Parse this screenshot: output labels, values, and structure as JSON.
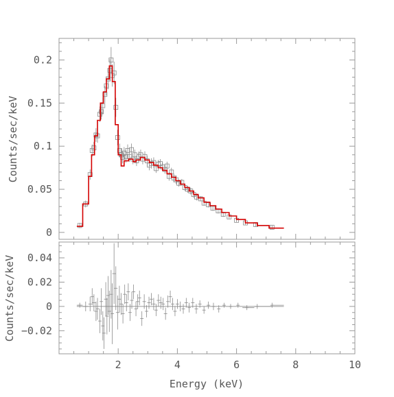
{
  "chart_data": [
    {
      "type": "line",
      "panel": "spectrum",
      "xlabel": "",
      "ylabel": "Counts/sec/keV",
      "xlim": [
        0,
        10
      ],
      "ylim": [
        -0.008,
        0.225
      ],
      "yticks": [
        {
          "v": 0,
          "label": "0"
        },
        {
          "v": 0.05,
          "label": "0.05"
        },
        {
          "v": 0.1,
          "label": "0.1"
        },
        {
          "v": 0.15,
          "label": "0.15"
        },
        {
          "v": 0.2,
          "label": "0.2"
        }
      ],
      "model_color": "#d40000",
      "data_color": "#888888",
      "model_step": [
        [
          0.6,
          0.007
        ],
        [
          0.8,
          0.007
        ],
        [
          0.8,
          0.033
        ],
        [
          1.0,
          0.033
        ],
        [
          1.0,
          0.065
        ],
        [
          1.1,
          0.065
        ],
        [
          1.1,
          0.09
        ],
        [
          1.2,
          0.09
        ],
        [
          1.2,
          0.112
        ],
        [
          1.3,
          0.112
        ],
        [
          1.3,
          0.13
        ],
        [
          1.4,
          0.13
        ],
        [
          1.4,
          0.15
        ],
        [
          1.5,
          0.15
        ],
        [
          1.5,
          0.163
        ],
        [
          1.6,
          0.163
        ],
        [
          1.6,
          0.178
        ],
        [
          1.7,
          0.178
        ],
        [
          1.7,
          0.193
        ],
        [
          1.8,
          0.193
        ],
        [
          1.8,
          0.175
        ],
        [
          1.9,
          0.175
        ],
        [
          1.9,
          0.125
        ],
        [
          2.0,
          0.125
        ],
        [
          2.0,
          0.09
        ],
        [
          2.1,
          0.09
        ],
        [
          2.1,
          0.077
        ],
        [
          2.2,
          0.077
        ],
        [
          2.2,
          0.083
        ],
        [
          2.35,
          0.083
        ],
        [
          2.35,
          0.085
        ],
        [
          2.5,
          0.085
        ],
        [
          2.5,
          0.082
        ],
        [
          2.6,
          0.082
        ],
        [
          2.6,
          0.084
        ],
        [
          2.75,
          0.084
        ],
        [
          2.75,
          0.087
        ],
        [
          2.9,
          0.087
        ],
        [
          2.9,
          0.084
        ],
        [
          3.05,
          0.084
        ],
        [
          3.05,
          0.081
        ],
        [
          3.2,
          0.081
        ],
        [
          3.2,
          0.078
        ],
        [
          3.35,
          0.078
        ],
        [
          3.35,
          0.075
        ],
        [
          3.5,
          0.075
        ],
        [
          3.5,
          0.072
        ],
        [
          3.65,
          0.072
        ],
        [
          3.65,
          0.068
        ],
        [
          3.8,
          0.068
        ],
        [
          3.8,
          0.064
        ],
        [
          3.95,
          0.064
        ],
        [
          3.95,
          0.06
        ],
        [
          4.1,
          0.06
        ],
        [
          4.1,
          0.056
        ],
        [
          4.25,
          0.056
        ],
        [
          4.25,
          0.052
        ],
        [
          4.4,
          0.052
        ],
        [
          4.4,
          0.048
        ],
        [
          4.55,
          0.048
        ],
        [
          4.55,
          0.044
        ],
        [
          4.7,
          0.044
        ],
        [
          4.7,
          0.04
        ],
        [
          4.9,
          0.04
        ],
        [
          4.9,
          0.035
        ],
        [
          5.1,
          0.035
        ],
        [
          5.1,
          0.031
        ],
        [
          5.3,
          0.031
        ],
        [
          5.3,
          0.027
        ],
        [
          5.5,
          0.027
        ],
        [
          5.5,
          0.023
        ],
        [
          5.75,
          0.023
        ],
        [
          5.75,
          0.019
        ],
        [
          6.0,
          0.019
        ],
        [
          6.0,
          0.015
        ],
        [
          6.3,
          0.015
        ],
        [
          6.3,
          0.011
        ],
        [
          6.7,
          0.011
        ],
        [
          6.7,
          0.008
        ],
        [
          7.1,
          0.008
        ],
        [
          7.1,
          0.005
        ],
        [
          7.6,
          0.005
        ]
      ],
      "data_points": [
        [
          0.7,
          0.008,
          0.003
        ],
        [
          0.9,
          0.033,
          0.004
        ],
        [
          1.05,
          0.067,
          0.006
        ],
        [
          1.12,
          0.095,
          0.007
        ],
        [
          1.18,
          0.098,
          0.007
        ],
        [
          1.25,
          0.113,
          0.008
        ],
        [
          1.3,
          0.112,
          0.008
        ],
        [
          1.38,
          0.137,
          0.009
        ],
        [
          1.43,
          0.14,
          0.009
        ],
        [
          1.48,
          0.147,
          0.01
        ],
        [
          1.55,
          0.16,
          0.01
        ],
        [
          1.6,
          0.17,
          0.011
        ],
        [
          1.66,
          0.178,
          0.012
        ],
        [
          1.72,
          0.188,
          0.013
        ],
        [
          1.76,
          0.2,
          0.015
        ],
        [
          1.8,
          0.182,
          0.013
        ],
        [
          1.86,
          0.185,
          0.013
        ],
        [
          1.92,
          0.145,
          0.011
        ],
        [
          1.98,
          0.11,
          0.009
        ],
        [
          2.05,
          0.095,
          0.008
        ],
        [
          2.1,
          0.09,
          0.007
        ],
        [
          2.15,
          0.087,
          0.007
        ],
        [
          2.2,
          0.092,
          0.007
        ],
        [
          2.26,
          0.088,
          0.007
        ],
        [
          2.32,
          0.095,
          0.007
        ],
        [
          2.38,
          0.088,
          0.006
        ],
        [
          2.45,
          0.096,
          0.007
        ],
        [
          2.5,
          0.085,
          0.006
        ],
        [
          2.56,
          0.09,
          0.006
        ],
        [
          2.62,
          0.083,
          0.006
        ],
        [
          2.7,
          0.088,
          0.006
        ],
        [
          2.76,
          0.09,
          0.006
        ],
        [
          2.83,
          0.085,
          0.006
        ],
        [
          2.9,
          0.088,
          0.006
        ],
        [
          2.98,
          0.083,
          0.006
        ],
        [
          3.05,
          0.078,
          0.006
        ],
        [
          3.12,
          0.08,
          0.006
        ],
        [
          3.2,
          0.081,
          0.006
        ],
        [
          3.28,
          0.074,
          0.005
        ],
        [
          3.35,
          0.079,
          0.005
        ],
        [
          3.42,
          0.08,
          0.005
        ],
        [
          3.5,
          0.076,
          0.005
        ],
        [
          3.58,
          0.073,
          0.005
        ],
        [
          3.65,
          0.077,
          0.005
        ],
        [
          3.72,
          0.065,
          0.005
        ],
        [
          3.8,
          0.07,
          0.005
        ],
        [
          3.88,
          0.063,
          0.005
        ],
        [
          3.96,
          0.061,
          0.005
        ],
        [
          4.05,
          0.057,
          0.004
        ],
        [
          4.15,
          0.058,
          0.004
        ],
        [
          4.25,
          0.052,
          0.004
        ],
        [
          4.35,
          0.05,
          0.004
        ],
        [
          4.45,
          0.048,
          0.004
        ],
        [
          4.55,
          0.044,
          0.004
        ],
        [
          4.65,
          0.041,
          0.004
        ],
        [
          4.78,
          0.039,
          0.003
        ],
        [
          4.9,
          0.034,
          0.003
        ],
        [
          5.05,
          0.032,
          0.003
        ],
        [
          5.2,
          0.028,
          0.003
        ],
        [
          5.38,
          0.025,
          0.003
        ],
        [
          5.55,
          0.021,
          0.003
        ],
        [
          5.75,
          0.018,
          0.002
        ],
        [
          6.0,
          0.014,
          0.002
        ],
        [
          6.3,
          0.011,
          0.002
        ],
        [
          6.65,
          0.009,
          0.002
        ],
        [
          7.2,
          0.006,
          0.002
        ]
      ]
    },
    {
      "type": "scatter",
      "panel": "residuals",
      "xlabel": "Energy (keV)",
      "ylabel": "Counts/sec/keV",
      "xlim": [
        0,
        10
      ],
      "ylim": [
        -0.039,
        0.053
      ],
      "xticks": [
        {
          "v": 2,
          "label": "2"
        },
        {
          "v": 4,
          "label": "4"
        },
        {
          "v": 6,
          "label": "6"
        },
        {
          "v": 8,
          "label": "8"
        },
        {
          "v": 10,
          "label": "10"
        }
      ],
      "yticks": [
        {
          "v": -0.02,
          "label": "−0.02"
        },
        {
          "v": 0,
          "label": "0"
        },
        {
          "v": 0.02,
          "label": "0.02"
        },
        {
          "v": 0.04,
          "label": "0.04"
        }
      ],
      "baseline": 0,
      "data_color": "#888888",
      "data_points": [
        [
          0.7,
          0.001,
          0.002
        ],
        [
          0.9,
          0.0,
          0.004
        ],
        [
          1.05,
          0.002,
          0.006
        ],
        [
          1.12,
          0.008,
          0.007
        ],
        [
          1.18,
          0.003,
          0.007
        ],
        [
          1.25,
          -0.004,
          0.008
        ],
        [
          1.3,
          -0.002,
          0.009
        ],
        [
          1.38,
          -0.012,
          0.01
        ],
        [
          1.43,
          0.004,
          0.011
        ],
        [
          1.48,
          -0.016,
          0.012
        ],
        [
          1.52,
          -0.022,
          0.013
        ],
        [
          1.58,
          0.006,
          0.014
        ],
        [
          1.62,
          -0.008,
          0.015
        ],
        [
          1.66,
          0.009,
          0.016
        ],
        [
          1.7,
          -0.004,
          0.017
        ],
        [
          1.76,
          0.01,
          0.02
        ],
        [
          1.8,
          -0.006,
          0.025
        ],
        [
          1.86,
          0.027,
          0.025
        ],
        [
          1.92,
          0.015,
          0.018
        ],
        [
          1.98,
          -0.005,
          0.014
        ],
        [
          2.04,
          0.006,
          0.011
        ],
        [
          2.1,
          0.002,
          0.009
        ],
        [
          2.16,
          -0.006,
          0.008
        ],
        [
          2.22,
          0.01,
          0.008
        ],
        [
          2.28,
          0.003,
          0.007
        ],
        [
          2.34,
          0.012,
          0.007
        ],
        [
          2.4,
          -0.005,
          0.007
        ],
        [
          2.46,
          0.005,
          0.007
        ],
        [
          2.52,
          0.012,
          0.006
        ],
        [
          2.6,
          -0.002,
          0.006
        ],
        [
          2.66,
          0.004,
          0.006
        ],
        [
          2.72,
          0.007,
          0.006
        ],
        [
          2.8,
          -0.01,
          0.006
        ],
        [
          2.88,
          0.004,
          0.006
        ],
        [
          2.96,
          -0.004,
          0.005
        ],
        [
          3.04,
          0.003,
          0.005
        ],
        [
          3.12,
          0.006,
          0.005
        ],
        [
          3.2,
          0.002,
          0.005
        ],
        [
          3.28,
          -0.003,
          0.005
        ],
        [
          3.36,
          0.005,
          0.005
        ],
        [
          3.44,
          0.003,
          0.005
        ],
        [
          3.52,
          0.002,
          0.005
        ],
        [
          3.6,
          -0.006,
          0.005
        ],
        [
          3.68,
          0.004,
          0.005
        ],
        [
          3.76,
          0.008,
          0.005
        ],
        [
          3.84,
          0.002,
          0.005
        ],
        [
          3.92,
          -0.004,
          0.004
        ],
        [
          4.0,
          0.002,
          0.004
        ],
        [
          4.1,
          0.0,
          0.004
        ],
        [
          4.2,
          -0.002,
          0.004
        ],
        [
          4.3,
          0.003,
          0.004
        ],
        [
          4.4,
          -0.001,
          0.004
        ],
        [
          4.52,
          0.003,
          0.004
        ],
        [
          4.64,
          -0.002,
          0.004
        ],
        [
          4.76,
          0.002,
          0.003
        ],
        [
          4.9,
          -0.003,
          0.003
        ],
        [
          5.05,
          0.001,
          0.003
        ],
        [
          5.22,
          0.0,
          0.003
        ],
        [
          5.4,
          -0.002,
          0.003
        ],
        [
          5.58,
          0.001,
          0.002
        ],
        [
          5.8,
          0.0,
          0.002
        ],
        [
          6.05,
          0.001,
          0.002
        ],
        [
          6.35,
          -0.001,
          0.002
        ],
        [
          6.7,
          0.0,
          0.002
        ],
        [
          7.2,
          0.001,
          0.002
        ]
      ],
      "residual_steps": [
        [
          0.6,
          0.8,
          0.001
        ],
        [
          0.8,
          1.0,
          0.0
        ],
        [
          6.2,
          6.6,
          -0.001
        ],
        [
          6.6,
          7.2,
          0.0
        ],
        [
          7.2,
          7.6,
          0.001
        ]
      ]
    }
  ]
}
